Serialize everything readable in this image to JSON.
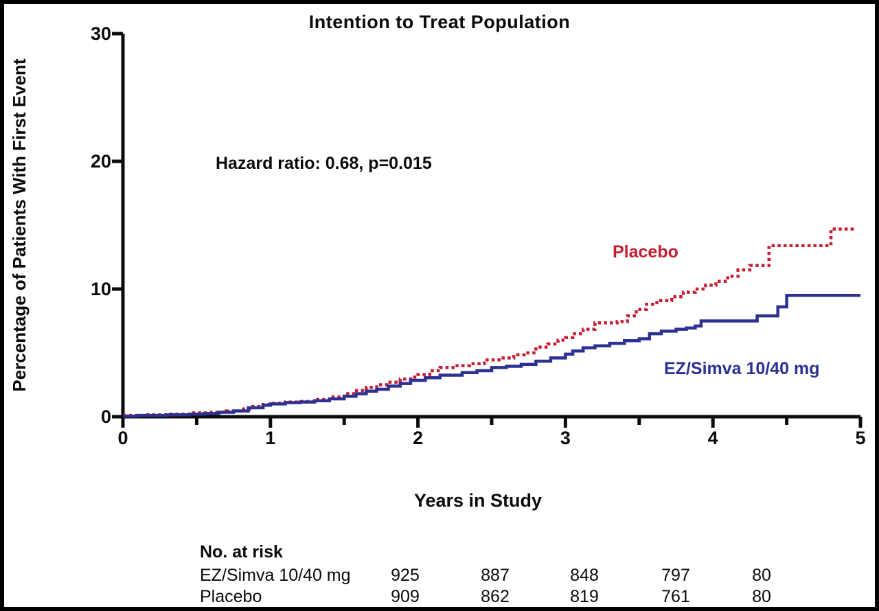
{
  "title": "Intention to Treat Population",
  "annotation": "Hazard ratio: 0.68, p=0.015",
  "chart_data": {
    "type": "line",
    "subtype": "kaplan-meier-step",
    "title": "Intention to Treat Population",
    "xlabel": "Years in Study",
    "ylabel": "Percentage of Patients With First Event",
    "xlim": [
      0,
      5
    ],
    "ylim": [
      0,
      30
    ],
    "x_ticks": [
      0,
      1,
      2,
      3,
      4,
      5
    ],
    "x_minor_ticks": [
      0.5,
      1.5,
      2.5,
      3.5,
      4.5
    ],
    "y_ticks": [
      0,
      10,
      20,
      30
    ],
    "grid": false,
    "legend_position": "inline-labels",
    "axis_color": "#0b0b0b",
    "series": [
      {
        "name": "Placebo",
        "color": "#C41E32",
        "style": "dotted",
        "points": [
          [
            0,
            0.1
          ],
          [
            0.15,
            0.15
          ],
          [
            0.3,
            0.2
          ],
          [
            0.45,
            0.3
          ],
          [
            0.6,
            0.35
          ],
          [
            0.7,
            0.45
          ],
          [
            0.8,
            0.6
          ],
          [
            0.88,
            0.8
          ],
          [
            0.95,
            0.95
          ],
          [
            1.0,
            1.05
          ],
          [
            1.1,
            1.15
          ],
          [
            1.2,
            1.2
          ],
          [
            1.3,
            1.35
          ],
          [
            1.4,
            1.55
          ],
          [
            1.5,
            1.8
          ],
          [
            1.57,
            2.05
          ],
          [
            1.65,
            2.3
          ],
          [
            1.72,
            2.5
          ],
          [
            1.8,
            2.7
          ],
          [
            1.88,
            2.95
          ],
          [
            1.95,
            3.1
          ],
          [
            2.0,
            3.3
          ],
          [
            2.08,
            3.6
          ],
          [
            2.15,
            3.85
          ],
          [
            2.25,
            4.0
          ],
          [
            2.35,
            4.15
          ],
          [
            2.45,
            4.45
          ],
          [
            2.55,
            4.6
          ],
          [
            2.65,
            4.85
          ],
          [
            2.72,
            5.0
          ],
          [
            2.8,
            5.45
          ],
          [
            2.88,
            5.7
          ],
          [
            2.95,
            6.0
          ],
          [
            3.0,
            6.2
          ],
          [
            3.05,
            6.5
          ],
          [
            3.12,
            6.85
          ],
          [
            3.2,
            7.35
          ],
          [
            3.35,
            7.45
          ],
          [
            3.42,
            7.9
          ],
          [
            3.48,
            8.4
          ],
          [
            3.55,
            8.8
          ],
          [
            3.62,
            9.1
          ],
          [
            3.72,
            9.4
          ],
          [
            3.8,
            9.75
          ],
          [
            3.88,
            10.0
          ],
          [
            3.95,
            10.3
          ],
          [
            4.02,
            10.6
          ],
          [
            4.1,
            11.0
          ],
          [
            4.17,
            11.5
          ],
          [
            4.25,
            11.85
          ],
          [
            4.38,
            13.4
          ],
          [
            4.8,
            14.7
          ],
          [
            4.97,
            14.7
          ]
        ]
      },
      {
        "name": "EZ/Simva 10/40 mg",
        "color": "#2D3192",
        "style": "solid",
        "points": [
          [
            0,
            0.05
          ],
          [
            0.1,
            0.1
          ],
          [
            0.3,
            0.15
          ],
          [
            0.45,
            0.2
          ],
          [
            0.55,
            0.25
          ],
          [
            0.65,
            0.35
          ],
          [
            0.75,
            0.45
          ],
          [
            0.85,
            0.7
          ],
          [
            0.95,
            0.9
          ],
          [
            1.0,
            1.0
          ],
          [
            1.1,
            1.1
          ],
          [
            1.2,
            1.15
          ],
          [
            1.3,
            1.25
          ],
          [
            1.4,
            1.4
          ],
          [
            1.5,
            1.6
          ],
          [
            1.58,
            1.8
          ],
          [
            1.65,
            2.0
          ],
          [
            1.72,
            2.15
          ],
          [
            1.8,
            2.4
          ],
          [
            1.88,
            2.6
          ],
          [
            1.95,
            2.85
          ],
          [
            2.05,
            3.05
          ],
          [
            2.15,
            3.25
          ],
          [
            2.3,
            3.45
          ],
          [
            2.4,
            3.6
          ],
          [
            2.5,
            3.85
          ],
          [
            2.6,
            3.95
          ],
          [
            2.7,
            4.1
          ],
          [
            2.8,
            4.35
          ],
          [
            2.9,
            4.6
          ],
          [
            3.0,
            4.9
          ],
          [
            3.05,
            5.15
          ],
          [
            3.12,
            5.4
          ],
          [
            3.2,
            5.55
          ],
          [
            3.3,
            5.75
          ],
          [
            3.4,
            5.95
          ],
          [
            3.5,
            6.1
          ],
          [
            3.57,
            6.5
          ],
          [
            3.65,
            6.7
          ],
          [
            3.75,
            6.85
          ],
          [
            3.82,
            6.95
          ],
          [
            3.88,
            7.1
          ],
          [
            3.92,
            7.5
          ],
          [
            4.3,
            7.9
          ],
          [
            4.44,
            8.6
          ],
          [
            4.5,
            9.5
          ],
          [
            5.0,
            9.5
          ]
        ]
      }
    ]
  },
  "risk_table": {
    "header": "No. at risk",
    "rows": [
      {
        "label": "EZ/Simva 10/40 mg",
        "values": [
          "925",
          "887",
          "848",
          "797",
          "80"
        ]
      },
      {
        "label": "Placebo",
        "values": [
          "909",
          "862",
          "819",
          "761",
          "80"
        ]
      }
    ]
  }
}
